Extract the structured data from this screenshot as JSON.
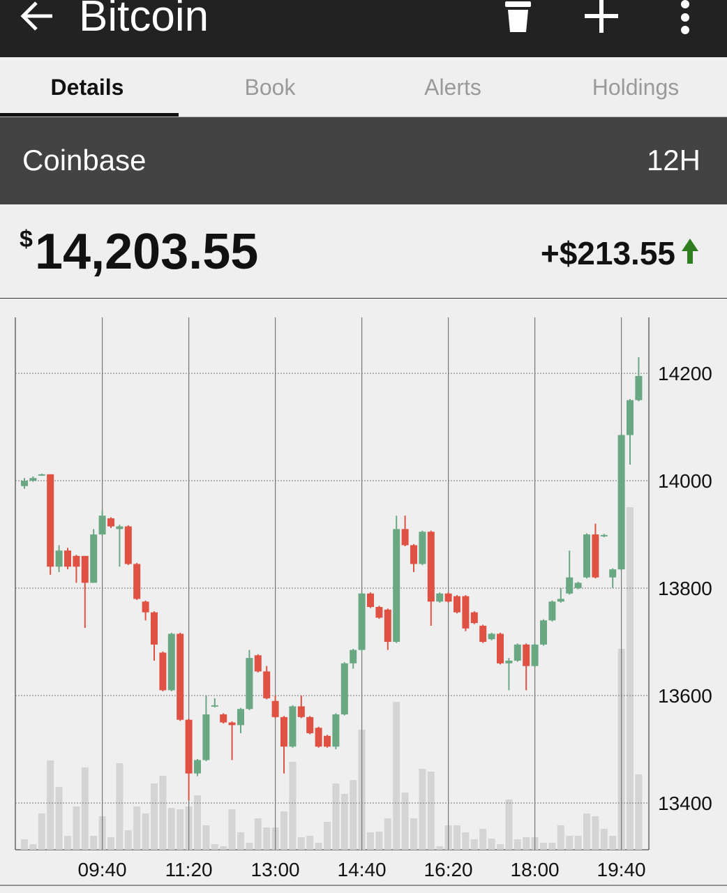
{
  "header": {
    "title": "Bitcoin"
  },
  "tabs": [
    "Details",
    "Book",
    "Alerts",
    "Holdings"
  ],
  "exchange": "Coinbase",
  "period": "12H",
  "price": {
    "currency": "$",
    "value": "14,203.55",
    "change": "+$213.55"
  },
  "chart_data": {
    "type": "candlestick",
    "categories": [
      null,
      null,
      null,
      null,
      null,
      null,
      null,
      null,
      null,
      "09:40",
      null,
      null,
      null,
      null,
      null,
      null,
      null,
      null,
      null,
      "11:20",
      null,
      null,
      null,
      null,
      null,
      null,
      null,
      null,
      null,
      "13:00",
      null,
      null,
      null,
      null,
      null,
      null,
      null,
      null,
      null,
      "14:40",
      null,
      null,
      null,
      null,
      null,
      null,
      null,
      null,
      null,
      "16:20",
      null,
      null,
      null,
      null,
      null,
      null,
      null,
      null,
      null,
      "18:00",
      null,
      null,
      null,
      null,
      null,
      null,
      null,
      null,
      null,
      "19:40",
      null,
      null
    ],
    "open": [
      13990,
      14000,
      14010,
      14012,
      13840,
      13870,
      13860,
      13860,
      13810,
      13900,
      13930,
      13910,
      13915,
      13845,
      13775,
      13755,
      13680,
      13610,
      13715,
      13555,
      13455,
      13480,
      13580,
      13565,
      13550,
      13545,
      13575,
      13675,
      13645,
      13590,
      13560,
      13505,
      13580,
      13560,
      13540,
      13525,
      13505,
      13565,
      13660,
      13685,
      13790,
      13765,
      13760,
      13700,
      13910,
      13880,
      13845,
      13905,
      13775,
      13790,
      13785,
      13785,
      13755,
      13730,
      13705,
      13715,
      13660,
      13665,
      13695,
      13655,
      13695,
      13740,
      13775,
      13790,
      13800,
      13820,
      13900,
      13897,
      13820,
      13835,
      14085,
      14150
    ],
    "high": [
      14005,
      14008,
      14013,
      14012,
      13880,
      13875,
      13862,
      13860,
      13910,
      13945,
      13932,
      13918,
      13917,
      13847,
      13777,
      13757,
      13682,
      13717,
      13717,
      13557,
      13482,
      13600,
      13595,
      13567,
      13552,
      13577,
      13685,
      13677,
      13655,
      13600,
      13562,
      13582,
      13600,
      13562,
      13542,
      13527,
      13567,
      13662,
      13687,
      13792,
      13792,
      13767,
      13762,
      13935,
      13935,
      13882,
      13907,
      13907,
      13792,
      13792,
      13787,
      13787,
      13757,
      13732,
      13717,
      13717,
      13670,
      13697,
      13697,
      13697,
      13742,
      13777,
      13800,
      13870,
      13812,
      13902,
      13920,
      13901,
      13837,
      14087,
      14152,
      14230
    ],
    "low": [
      13985,
      13998,
      14009,
      13825,
      13830,
      13835,
      13810,
      13726,
      13810,
      13898,
      13912,
      13840,
      13843,
      13778,
      13740,
      13665,
      13608,
      13608,
      13553,
      13405,
      13450,
      13478,
      13578,
      13548,
      13480,
      13530,
      13573,
      13643,
      13593,
      13558,
      13455,
      13503,
      13558,
      13528,
      13503,
      13503,
      13500,
      13563,
      13650,
      13683,
      13763,
      13743,
      13685,
      13698,
      13878,
      13830,
      13843,
      13730,
      13773,
      13773,
      13753,
      13720,
      13733,
      13698,
      13703,
      13658,
      13610,
      13663,
      13610,
      13653,
      13693,
      13738,
      13773,
      13788,
      13798,
      13818,
      13818,
      13895,
      13800,
      13833,
      14030,
      14148
    ],
    "close": [
      14000,
      14005,
      14012,
      13840,
      13870,
      13840,
      13840,
      13810,
      13900,
      13935,
      13915,
      13915,
      13845,
      13780,
      13755,
      13695,
      13610,
      13715,
      13555,
      13455,
      13480,
      13565,
      13582,
      13550,
      13545,
      13575,
      13670,
      13645,
      13595,
      13560,
      13505,
      13580,
      13560,
      13530,
      13505,
      13505,
      13565,
      13660,
      13685,
      13790,
      13765,
      13745,
      13700,
      13910,
      13880,
      13845,
      13905,
      13775,
      13790,
      13775,
      13755,
      13725,
      13735,
      13700,
      13715,
      13660,
      13665,
      13695,
      13655,
      13695,
      13740,
      13775,
      13780,
      13820,
      13810,
      13900,
      13820,
      13899,
      13835,
      14085,
      14150,
      14195
    ],
    "volume": [
      15,
      8,
      52,
      128,
      90,
      20,
      62,
      118,
      20,
      48,
      18,
      124,
      28,
      62,
      52,
      95,
      106,
      60,
      58,
      62,
      78,
      35,
      8,
      5,
      58,
      25,
      10,
      45,
      32,
      32,
      55,
      126,
      18,
      20,
      10,
      40,
      95,
      80,
      100,
      172,
      25,
      26,
      45,
      212,
      82,
      45,
      116,
      112,
      5,
      35,
      35,
      25,
      15,
      30,
      16,
      8,
      72,
      15,
      18,
      18,
      10,
      10,
      35,
      20,
      20,
      52,
      48,
      30,
      20,
      288,
      491,
      108
    ],
    "up_color": "#6aa883",
    "down_color": "#df5142",
    "volume_color": "#d4d4d4",
    "ylim": [
      13313,
      14304
    ],
    "yticks": [
      13400,
      13600,
      13800,
      14000,
      14200
    ],
    "grid": true
  }
}
